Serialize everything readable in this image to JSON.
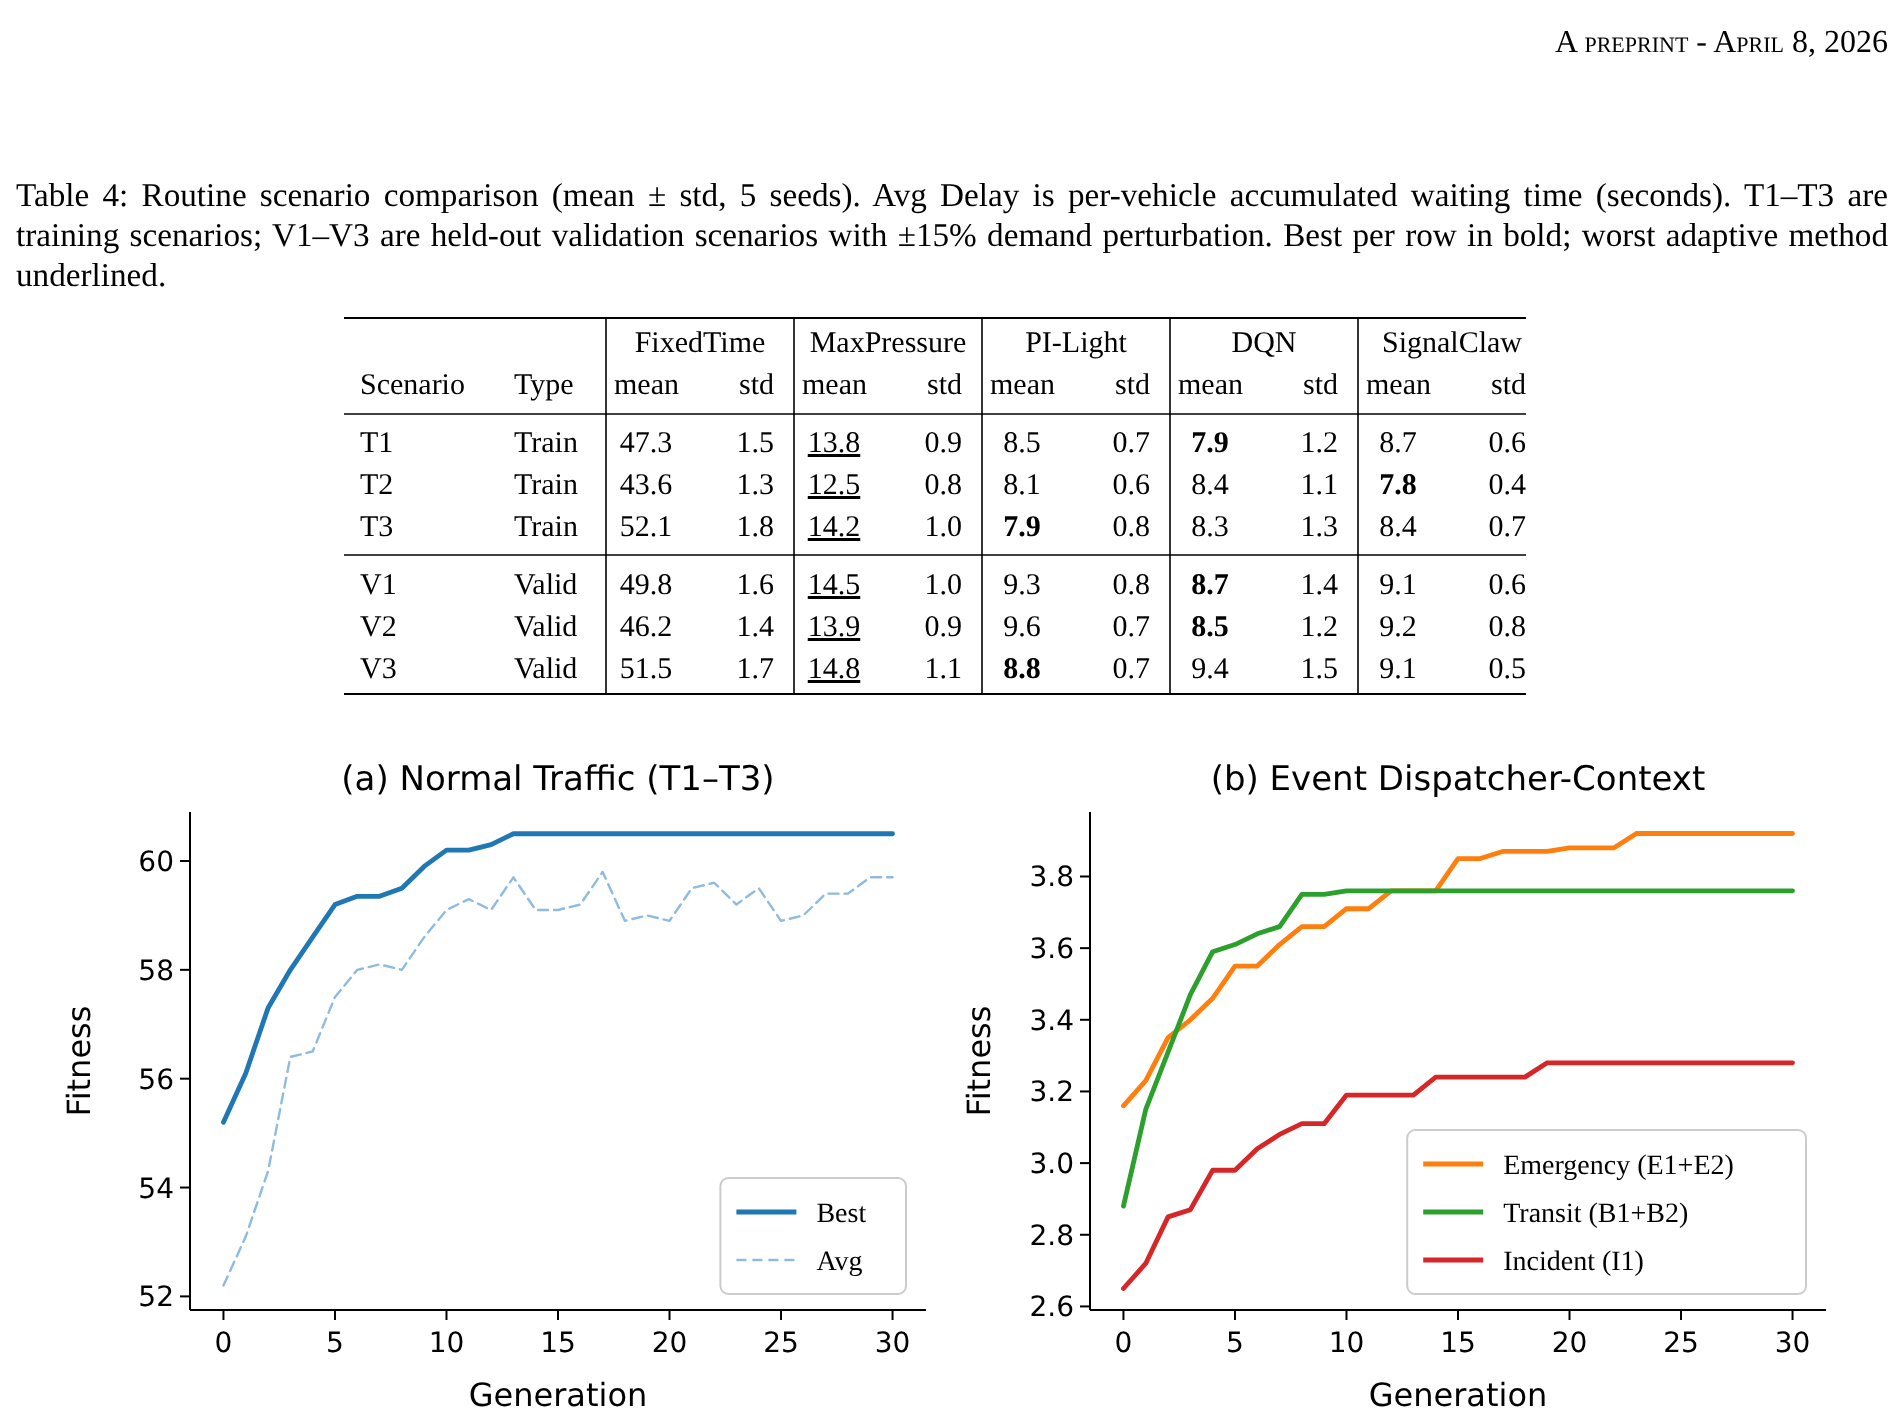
{
  "chart_data": [
    {
      "type": "other",
      "title": "Table 4: Routine scenario comparison (mean ± std, 5 seeds). Avg Delay is per-vehicle accumulated waiting time (seconds). T1–T3 are training scenarios; V1–V3 are held-out validation scenarios with ±15% demand perturbation. Best per row in bold; worst adaptive method underlined.",
      "annotations": [
        "A preprint - April 8, 2026",
        "Scenario",
        "Type",
        "mean",
        "std"
      ],
      "categories": [
        "T1",
        "T2",
        "T3",
        "V1",
        "V2",
        "V3"
      ],
      "y2_categories": [
        "Train",
        "Train",
        "Train",
        "Valid",
        "Valid",
        "Valid"
      ],
      "series": [
        {
          "name": "FixedTime",
          "values": [
            47.3,
            43.6,
            52.1,
            49.8,
            46.2,
            51.5
          ]
        },
        {
          "values": [
            1.5,
            1.3,
            1.8,
            1.6,
            1.4,
            1.7
          ]
        },
        {
          "name": "MaxPressure",
          "values": [
            13.8,
            12.5,
            14.2,
            14.5,
            13.9,
            14.8
          ]
        },
        {
          "values": [
            0.9,
            0.8,
            1.0,
            1.0,
            0.9,
            1.1
          ],
          "value_labels": [
            "0.9",
            "0.8",
            "1.0",
            "1.0",
            "0.9",
            "1.1"
          ]
        },
        {
          "name": "PI-Light",
          "values": [
            8.5,
            8.1,
            7.9,
            9.3,
            9.6,
            8.8
          ]
        },
        {
          "values": [
            0.7,
            0.6,
            0.8,
            0.8,
            0.7,
            0.7
          ]
        },
        {
          "name": "DQN",
          "values": [
            7.9,
            8.4,
            8.3,
            8.7,
            8.5,
            9.4
          ]
        },
        {
          "values": [
            1.2,
            1.1,
            1.3,
            1.4,
            1.2,
            1.5
          ]
        },
        {
          "name": "SignalClaw",
          "values": [
            8.7,
            7.8,
            8.4,
            9.1,
            9.2,
            9.1
          ]
        },
        {
          "values": [
            0.6,
            0.4,
            0.7,
            0.6,
            0.8,
            0.5
          ]
        }
      ],
      "data_labels": true
    },
    {
      "type": "line",
      "title": "(a) Normal Traffic (T1–T3)",
      "xlabel": "Generation",
      "ylabel": "Fitness",
      "x": [
        0,
        1,
        2,
        3,
        4,
        5,
        6,
        7,
        8,
        9,
        10,
        11,
        12,
        13,
        14,
        15,
        16,
        17,
        18,
        19,
        20,
        21,
        22,
        23,
        24,
        25,
        26,
        27,
        28,
        29,
        30
      ],
      "xlim": [
        -1.5,
        31.5
      ],
      "xticks": [
        0,
        5,
        10,
        15,
        20,
        25,
        30
      ],
      "ylim": [
        51.75,
        60.9
      ],
      "yticks": [
        52,
        54,
        56,
        58,
        60
      ],
      "legend": "bottom right",
      "series": [
        {
          "name": "Best",
          "color": "#1f77b4",
          "line_style": "solid",
          "values": [
            55.2,
            56.1,
            57.3,
            58.0,
            58.6,
            59.2,
            59.35,
            59.35,
            59.5,
            59.9,
            60.2,
            60.2,
            60.3,
            60.5,
            60.5,
            60.5,
            60.5,
            60.5,
            60.5,
            60.5,
            60.5,
            60.5,
            60.5,
            60.5,
            60.5,
            60.5,
            60.5,
            60.5,
            60.5,
            60.5,
            60.5
          ]
        },
        {
          "name": "Avg",
          "color": "#8fbbe0",
          "line_style": "dashed",
          "values": [
            52.2,
            53.1,
            54.3,
            56.4,
            56.5,
            57.5,
            58.0,
            58.1,
            58.0,
            58.6,
            59.1,
            59.3,
            59.1,
            59.7,
            59.1,
            59.1,
            59.2,
            59.8,
            58.9,
            59.0,
            58.9,
            59.5,
            59.6,
            59.2,
            59.5,
            58.9,
            59.0,
            59.4,
            59.4,
            59.7,
            59.7
          ]
        }
      ]
    },
    {
      "type": "line",
      "title": "(b) Event Dispatcher-Context",
      "xlabel": "Generation",
      "ylabel": "Fitness",
      "x": [
        0,
        1,
        2,
        3,
        4,
        5,
        6,
        7,
        8,
        9,
        10,
        11,
        12,
        13,
        14,
        15,
        16,
        17,
        18,
        19,
        20,
        21,
        22,
        23,
        24,
        25,
        26,
        27,
        28,
        29,
        30
      ],
      "xlim": [
        -1.5,
        31.5
      ],
      "xticks": [
        0,
        5,
        10,
        15,
        20,
        25,
        30
      ],
      "ylim": [
        2.59,
        3.98
      ],
      "yticks": [
        {
          "value": 2.6,
          "label": "2.6"
        },
        {
          "value": 2.8,
          "label": "2.8"
        },
        {
          "value": 3.0,
          "label": "3.0"
        },
        {
          "value": 3.2,
          "label": "3.2"
        },
        {
          "value": 3.4,
          "label": "3.4"
        },
        {
          "value": 3.6,
          "label": "3.6"
        },
        {
          "value": 3.8,
          "label": "3.8"
        }
      ],
      "legend": "bottom right",
      "series": [
        {
          "name": "Emergency (E1+E2)",
          "color": "#ff7f0e",
          "values": [
            3.16,
            3.23,
            3.35,
            3.4,
            3.46,
            3.55,
            3.55,
            3.61,
            3.66,
            3.66,
            3.71,
            3.71,
            3.76,
            3.76,
            3.76,
            3.85,
            3.85,
            3.87,
            3.87,
            3.87,
            3.88,
            3.88,
            3.88,
            3.92,
            3.92,
            3.92,
            3.92,
            3.92,
            3.92,
            3.92,
            3.92
          ]
        },
        {
          "name": "Transit (B1+B2)",
          "color": "#2ca02c",
          "values": [
            2.88,
            3.15,
            3.31,
            3.47,
            3.59,
            3.61,
            3.64,
            3.66,
            3.75,
            3.75,
            3.76,
            3.76,
            3.76,
            3.76,
            3.76,
            3.76,
            3.76,
            3.76,
            3.76,
            3.76,
            3.76,
            3.76,
            3.76,
            3.76,
            3.76,
            3.76,
            3.76,
            3.76,
            3.76,
            3.76,
            3.76
          ]
        },
        {
          "name": "Incident (I1)",
          "color": "#d62728",
          "values": [
            2.65,
            2.72,
            2.85,
            2.87,
            2.98,
            2.98,
            3.04,
            3.08,
            3.11,
            3.11,
            3.19,
            3.19,
            3.19,
            3.19,
            3.24,
            3.24,
            3.24,
            3.24,
            3.24,
            3.28,
            3.28,
            3.28,
            3.28,
            3.28,
            3.28,
            3.28,
            3.28,
            3.28,
            3.28,
            3.28,
            3.28
          ]
        }
      ]
    }
  ]
}
